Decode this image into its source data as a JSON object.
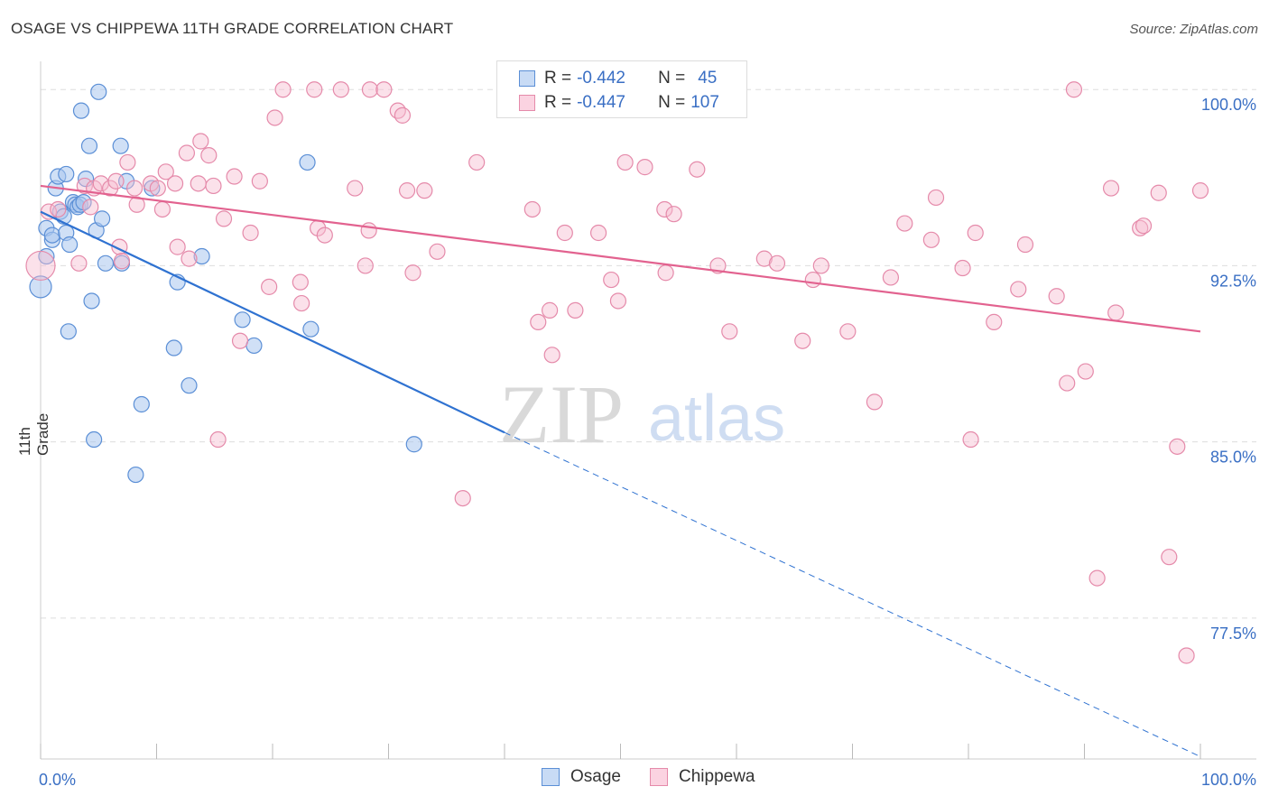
{
  "header": {
    "title": "OSAGE VS CHIPPEWA 11TH GRADE CORRELATION CHART",
    "source": "Source: ZipAtlas.com"
  },
  "legend": {
    "rows": [
      {
        "r_label": "R =",
        "r_value": "-0.442",
        "n_label": "N =",
        "n_value": "45"
      },
      {
        "r_label": "R =",
        "r_value": "-0.447",
        "n_label": "N =",
        "n_value": "107"
      }
    ]
  },
  "bottom_legend": {
    "items": [
      {
        "label": "Osage"
      },
      {
        "label": "Chippewa"
      }
    ]
  },
  "watermark": {
    "zip": "ZIP",
    "atlas": "atlas"
  },
  "colors": {
    "osage_fill": "#a9c6ef",
    "osage_stroke": "#5b8fd6",
    "osage_line": "#2f72d1",
    "chippewa_fill": "#f6bcd0",
    "chippewa_stroke": "#e58aaa",
    "chippewa_line": "#e2628f",
    "tick_label": "#3a6fc4",
    "grid": "#dddddd"
  },
  "chart_data": {
    "type": "scatter",
    "title": "OSAGE VS CHIPPEWA 11TH GRADE CORRELATION CHART",
    "xlabel": "",
    "ylabel": "11th Grade",
    "xlim": [
      0,
      100
    ],
    "ylim": [
      71.5,
      101.2
    ],
    "x_tick_labels": [
      "0.0%",
      "100.0%"
    ],
    "y_ticks": [
      100.0,
      92.5,
      85.0,
      77.5
    ],
    "y_tick_labels": [
      "100.0%",
      "92.5%",
      "85.0%",
      "77.5%"
    ],
    "grid": true,
    "legend_position": "top-center",
    "series": [
      {
        "name": "Osage",
        "r": -0.442,
        "n": 45,
        "trend": {
          "x0": 0,
          "y0": 94.8,
          "x1": 40,
          "y1": 85.4,
          "dashed_to_x": 100,
          "dashed_to_y": 71.6
        },
        "points": [
          [
            0,
            91.6
          ],
          [
            0.5,
            92.9
          ],
          [
            0.5,
            94.1
          ],
          [
            1,
            93.6
          ],
          [
            1,
            93.8
          ],
          [
            1.3,
            95.8
          ],
          [
            1.5,
            96.3
          ],
          [
            1.7,
            94.8
          ],
          [
            2,
            94.6
          ],
          [
            2.2,
            96.4
          ],
          [
            2.2,
            93.9
          ],
          [
            2.4,
            89.7
          ],
          [
            2.5,
            93.4
          ],
          [
            2.8,
            95.2
          ],
          [
            3,
            95.1
          ],
          [
            3.2,
            95.0
          ],
          [
            3.4,
            95.1
          ],
          [
            3.5,
            99.1
          ],
          [
            3.7,
            95.2
          ],
          [
            3.9,
            96.2
          ],
          [
            4.2,
            97.6
          ],
          [
            4.4,
            91.0
          ],
          [
            4.6,
            85.1
          ],
          [
            4.8,
            94.0
          ],
          [
            5,
            99.9
          ],
          [
            5.3,
            94.5
          ],
          [
            5.6,
            92.6
          ],
          [
            6.9,
            97.6
          ],
          [
            7,
            92.6
          ],
          [
            7.4,
            96.1
          ],
          [
            8.2,
            83.6
          ],
          [
            8.7,
            86.6
          ],
          [
            9.6,
            95.8
          ],
          [
            11.5,
            89.0
          ],
          [
            11.8,
            91.8
          ],
          [
            12.8,
            87.4
          ],
          [
            13.9,
            92.9
          ],
          [
            17.4,
            90.2
          ],
          [
            18.4,
            89.1
          ],
          [
            23,
            96.9
          ],
          [
            23.3,
            89.8
          ],
          [
            32.2,
            84.9
          ]
        ]
      },
      {
        "name": "Chippewa",
        "r": -0.447,
        "n": 107,
        "trend": {
          "x0": 0,
          "y0": 95.9,
          "x1": 100,
          "y1": 89.7
        },
        "points": [
          [
            0,
            92.5
          ],
          [
            0.7,
            94.8
          ],
          [
            1.5,
            94.9
          ],
          [
            3.3,
            92.6
          ],
          [
            3.8,
            95.9
          ],
          [
            4.3,
            95.0
          ],
          [
            4.6,
            95.8
          ],
          [
            5.2,
            96.0
          ],
          [
            6,
            95.8
          ],
          [
            6.5,
            96.1
          ],
          [
            6.8,
            93.3
          ],
          [
            7,
            92.7
          ],
          [
            7.5,
            96.9
          ],
          [
            8.1,
            95.8
          ],
          [
            8.3,
            95.1
          ],
          [
            9.5,
            96.0
          ],
          [
            10.1,
            95.8
          ],
          [
            10.5,
            94.9
          ],
          [
            10.8,
            96.5
          ],
          [
            11.6,
            96.0
          ],
          [
            11.8,
            93.3
          ],
          [
            12.6,
            97.3
          ],
          [
            12.8,
            92.8
          ],
          [
            13.6,
            96.0
          ],
          [
            13.8,
            97.8
          ],
          [
            14.5,
            97.2
          ],
          [
            14.9,
            95.9
          ],
          [
            15.3,
            85.1
          ],
          [
            15.8,
            94.5
          ],
          [
            16.7,
            96.3
          ],
          [
            17.2,
            89.3
          ],
          [
            18.1,
            93.9
          ],
          [
            18.9,
            96.1
          ],
          [
            19.7,
            91.6
          ],
          [
            20.2,
            98.8
          ],
          [
            20.9,
            100
          ],
          [
            22.4,
            91.8
          ],
          [
            22.5,
            90.9
          ],
          [
            23.6,
            100
          ],
          [
            23.9,
            94.1
          ],
          [
            24.5,
            93.8
          ],
          [
            25.9,
            100
          ],
          [
            27.1,
            95.8
          ],
          [
            28,
            92.5
          ],
          [
            28.3,
            94.0
          ],
          [
            28.4,
            100
          ],
          [
            29.6,
            100
          ],
          [
            30.8,
            99.1
          ],
          [
            31.2,
            98.9
          ],
          [
            31.6,
            95.7
          ],
          [
            32.1,
            92.2
          ],
          [
            33.1,
            95.7
          ],
          [
            34.2,
            93.1
          ],
          [
            36.4,
            82.6
          ],
          [
            37.6,
            96.9
          ],
          [
            42.4,
            94.9
          ],
          [
            42.9,
            90.1
          ],
          [
            43.9,
            90.6
          ],
          [
            44.1,
            88.7
          ],
          [
            45.2,
            93.9
          ],
          [
            46.1,
            90.6
          ],
          [
            48.1,
            93.9
          ],
          [
            49.2,
            91.9
          ],
          [
            49.8,
            91.0
          ],
          [
            50.4,
            96.9
          ],
          [
            52.1,
            96.7
          ],
          [
            53.8,
            94.9
          ],
          [
            53.9,
            92.2
          ],
          [
            54.6,
            94.7
          ],
          [
            56.6,
            96.6
          ],
          [
            58.4,
            92.5
          ],
          [
            59.4,
            89.7
          ],
          [
            62.4,
            92.8
          ],
          [
            63.5,
            92.6
          ],
          [
            65.7,
            89.3
          ],
          [
            66.6,
            91.9
          ],
          [
            67.3,
            92.5
          ],
          [
            69.6,
            89.7
          ],
          [
            71.9,
            86.7
          ],
          [
            73.3,
            92.0
          ],
          [
            74.5,
            94.3
          ],
          [
            76.8,
            93.6
          ],
          [
            77.2,
            95.4
          ],
          [
            79.5,
            92.4
          ],
          [
            80.2,
            85.1
          ],
          [
            80.6,
            93.9
          ],
          [
            82.2,
            90.1
          ],
          [
            84.3,
            91.5
          ],
          [
            84.9,
            93.4
          ],
          [
            87.6,
            91.2
          ],
          [
            88.5,
            87.5
          ],
          [
            89.1,
            100
          ],
          [
            90.1,
            88.0
          ],
          [
            91.1,
            79.2
          ],
          [
            92.3,
            95.8
          ],
          [
            92.7,
            90.5
          ],
          [
            94.8,
            94.1
          ],
          [
            95.1,
            94.2
          ],
          [
            96.4,
            95.6
          ],
          [
            97.3,
            80.1
          ],
          [
            98,
            84.8
          ],
          [
            98.8,
            75.9
          ],
          [
            100,
            95.7
          ]
        ]
      }
    ]
  }
}
